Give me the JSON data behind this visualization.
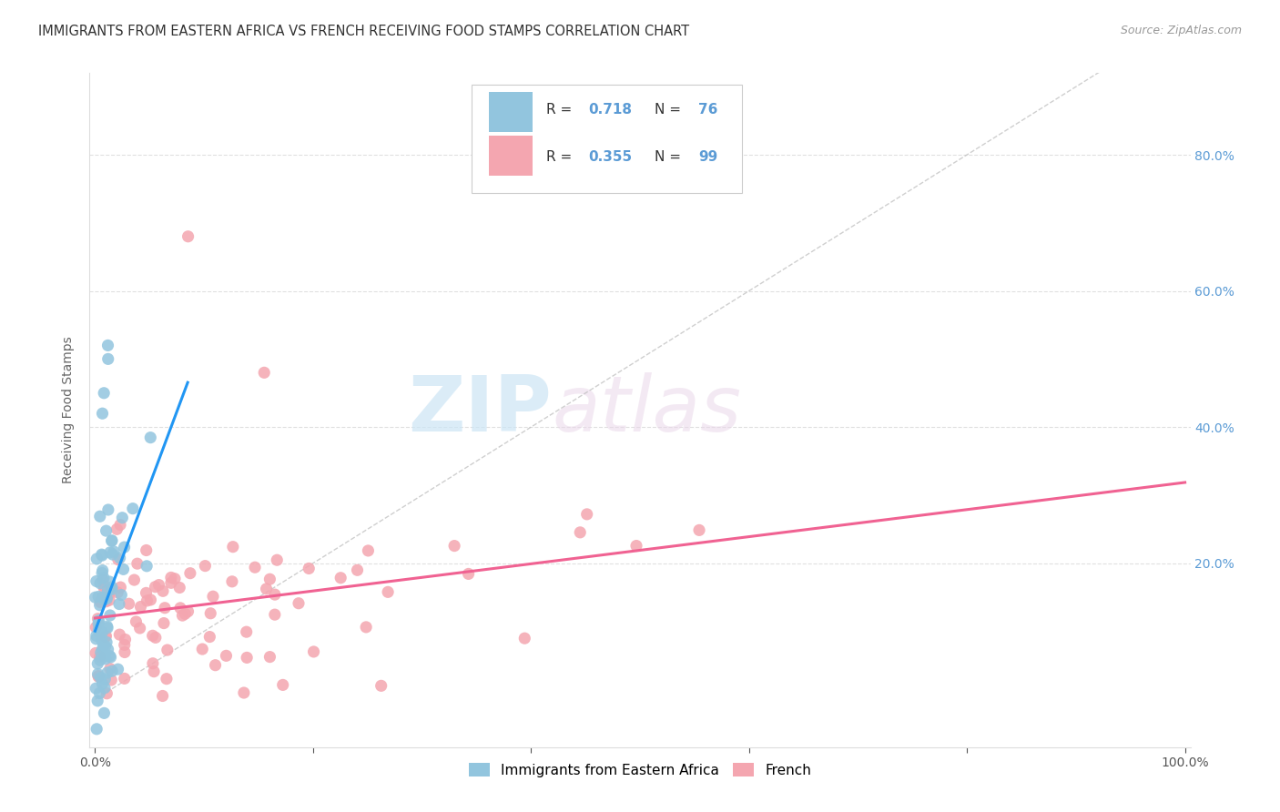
{
  "title": "IMMIGRANTS FROM EASTERN AFRICA VS FRENCH RECEIVING FOOD STAMPS CORRELATION CHART",
  "source": "Source: ZipAtlas.com",
  "ylabel": "Receiving Food Stamps",
  "blue_color": "#92c5de",
  "pink_color": "#f4a6b0",
  "blue_line_color": "#2196f3",
  "pink_line_color": "#f06292",
  "diag_color": "#bbbbbb",
  "watermark_color": "#cce5f5",
  "right_tick_color": "#5b9bd5",
  "grid_color": "#dddddd",
  "title_color": "#333333",
  "source_color": "#999999",
  "ylabel_color": "#666666",
  "tick_color": "#555555",
  "legend_edge_color": "#cccccc",
  "right_y_ticks": [
    0.2,
    0.4,
    0.6,
    0.8
  ],
  "right_y_tick_labels": [
    "20.0%",
    "40.0%",
    "60.0%",
    "80.0%"
  ],
  "x_tick_labels_ends": [
    "0.0%",
    "100.0%"
  ],
  "blue_R": "0.718",
  "blue_N": "76",
  "pink_R": "0.355",
  "pink_N": "99",
  "legend_label_blue": "Immigrants from Eastern Africa",
  "legend_label_pink": "French"
}
